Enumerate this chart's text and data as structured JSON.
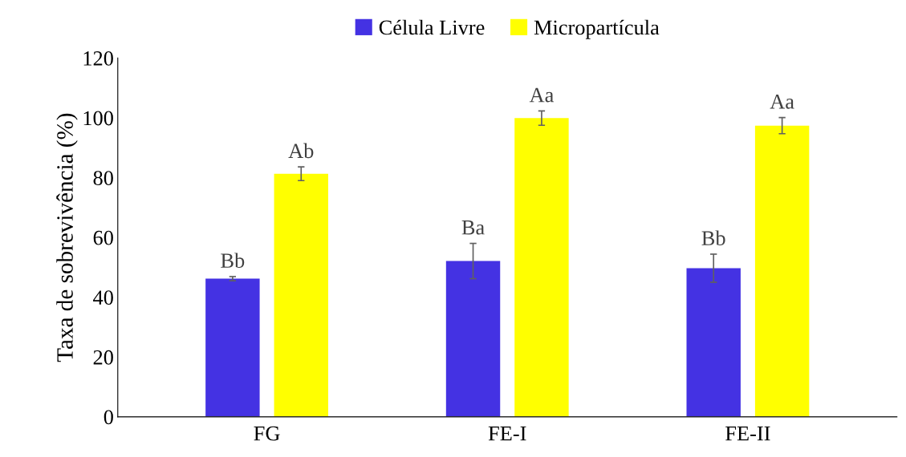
{
  "chart_data": {
    "type": "bar",
    "ylabel": "Taxa de sobrevivência (%)",
    "categories": [
      "FG",
      "FE-I",
      "FE-II"
    ],
    "series": [
      {
        "name": "Célula Livre",
        "color": "#4432e3",
        "values": [
          46.2,
          52.1,
          49.7
        ],
        "errors": [
          0.7,
          5.9,
          4.7
        ],
        "value_labels": [
          "Bb",
          "Ba",
          "Bb"
        ]
      },
      {
        "name": "Micropartícula",
        "color": "#ffff00",
        "values": [
          81.3,
          99.9,
          97.4
        ],
        "errors": [
          2.3,
          2.4,
          2.7
        ],
        "value_labels": [
          "Ab",
          "Aa",
          "Aa"
        ]
      }
    ],
    "ylim": [
      0,
      120
    ],
    "yticks": [
      0,
      20,
      40,
      60,
      80,
      100,
      120
    ],
    "grid": false,
    "legend": "top"
  }
}
